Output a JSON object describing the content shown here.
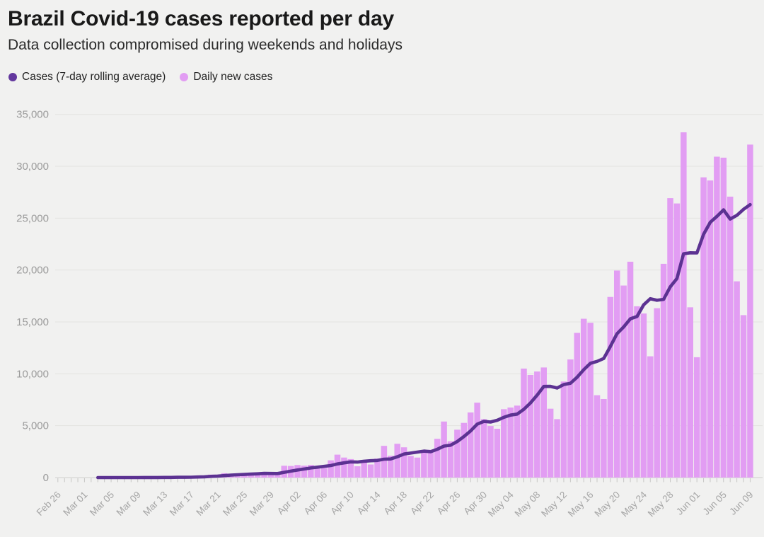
{
  "header": {
    "title": "Brazil Covid-19 cases reported per day",
    "subtitle": "Data collection compromised during weekends and holidays"
  },
  "legend": [
    {
      "label": "Cases (7-day rolling average)",
      "color": "#63389e",
      "marker": "dot"
    },
    {
      "label": "Daily new cases",
      "color": "#e29df3",
      "marker": "dot"
    }
  ],
  "colors": {
    "background": "#f1f1f0",
    "bar": "#e29df3",
    "line": "#5c3292",
    "gridline": "#e3e3e1",
    "axis_line": "#cfcfcd",
    "tick": "#c6c6c4",
    "axis_text": "#9b9b9b"
  },
  "chart_data": {
    "type": "bar",
    "title": "Brazil Covid-19 cases reported per day",
    "subtitle": "Data collection compromised during weekends and holidays",
    "xlabel": "",
    "ylabel": "",
    "ylim": [
      0,
      35000
    ],
    "grid": true,
    "legend_position": "top-left",
    "y_tick_values": [
      0,
      5000,
      10000,
      15000,
      20000,
      25000,
      30000,
      35000
    ],
    "y_tick_labels": [
      "0",
      "5,000",
      "10,000",
      "15,000",
      "20,000",
      "25,000",
      "30,000",
      "35,000"
    ],
    "x_tick_every": 4,
    "x_tick_labels": [
      "Feb 26",
      "Mar 01",
      "Mar 05",
      "Mar 09",
      "Mar 13",
      "Mar 17",
      "Mar 21",
      "Mar 25",
      "Mar 29",
      "Apr 02",
      "Apr 06",
      "Apr 10",
      "Apr 14",
      "Apr 18",
      "Apr 22",
      "Apr 26",
      "Apr 30",
      "May 04",
      "May 08",
      "May 12",
      "May 16",
      "May 20",
      "May 24",
      "May 28",
      "Jun 01",
      "Jun 05",
      "Jun 09"
    ],
    "dates": [
      "Feb 26",
      "Feb 27",
      "Feb 28",
      "Feb 29",
      "Mar 01",
      "Mar 02",
      "Mar 03",
      "Mar 04",
      "Mar 05",
      "Mar 06",
      "Mar 07",
      "Mar 08",
      "Mar 09",
      "Mar 10",
      "Mar 11",
      "Mar 12",
      "Mar 13",
      "Mar 14",
      "Mar 15",
      "Mar 16",
      "Mar 17",
      "Mar 18",
      "Mar 19",
      "Mar 20",
      "Mar 21",
      "Mar 22",
      "Mar 23",
      "Mar 24",
      "Mar 25",
      "Mar 26",
      "Mar 27",
      "Mar 28",
      "Mar 29",
      "Mar 30",
      "Mar 31",
      "Apr 01",
      "Apr 02",
      "Apr 03",
      "Apr 04",
      "Apr 05",
      "Apr 06",
      "Apr 07",
      "Apr 08",
      "Apr 09",
      "Apr 10",
      "Apr 11",
      "Apr 12",
      "Apr 13",
      "Apr 14",
      "Apr 15",
      "Apr 16",
      "Apr 17",
      "Apr 18",
      "Apr 19",
      "Apr 20",
      "Apr 21",
      "Apr 22",
      "Apr 23",
      "Apr 24",
      "Apr 25",
      "Apr 26",
      "Apr 27",
      "Apr 28",
      "Apr 29",
      "Apr 30",
      "May 01",
      "May 02",
      "May 03",
      "May 04",
      "May 05",
      "May 06",
      "May 07",
      "May 08",
      "May 09",
      "May 10",
      "May 11",
      "May 12",
      "May 13",
      "May 14",
      "May 15",
      "May 16",
      "May 17",
      "May 18",
      "May 19",
      "May 20",
      "May 21",
      "May 22",
      "May 23",
      "May 24",
      "May 25",
      "May 26",
      "May 27",
      "May 28",
      "May 29",
      "May 30",
      "May 31",
      "Jun 01",
      "Jun 02",
      "Jun 03",
      "Jun 04",
      "Jun 05",
      "Jun 06",
      "Jun 07",
      "Jun 08",
      "Jun 09"
    ],
    "series": [
      {
        "name": "Daily new cases",
        "type": "bar",
        "color": "#e29df3",
        "values": [
          1,
          0,
          0,
          1,
          0,
          0,
          1,
          1,
          4,
          5,
          6,
          6,
          0,
          9,
          18,
          25,
          21,
          23,
          79,
          34,
          57,
          137,
          193,
          283,
          224,
          418,
          345,
          323,
          310,
          431,
          502,
          487,
          352,
          323,
          1138,
          1119,
          1208,
          1146,
          1222,
          852,
          926,
          1661,
          2210,
          1930,
          1781,
          1089,
          1442,
          1261,
          1832,
          3058,
          2105,
          3257,
          2917,
          2089,
          1927,
          2498,
          2678,
          3735,
          5400,
          3503,
          4613,
          5270,
          6276,
          7218,
          5630,
          4970,
          4705,
          6590,
          6750,
          6935,
          10503,
          9888,
          10222,
          10611,
          6638,
          5632,
          9258,
          11385,
          13944,
          15305,
          14919,
          7938,
          7569,
          17408,
          19951,
          18508,
          20803,
          16508,
          15813,
          11687,
          16324,
          20599,
          26928,
          26417,
          33274,
          16409,
          11598,
          28936,
          28633,
          30925,
          30830,
          27075,
          18912,
          15654,
          32091
        ]
      },
      {
        "name": "Cases (7-day rolling average)",
        "type": "line",
        "color": "#5c3292",
        "derived": "trailing-7-day-mean-of-daily-new-cases",
        "window": 7,
        "starts_at_index": 6
      }
    ]
  }
}
